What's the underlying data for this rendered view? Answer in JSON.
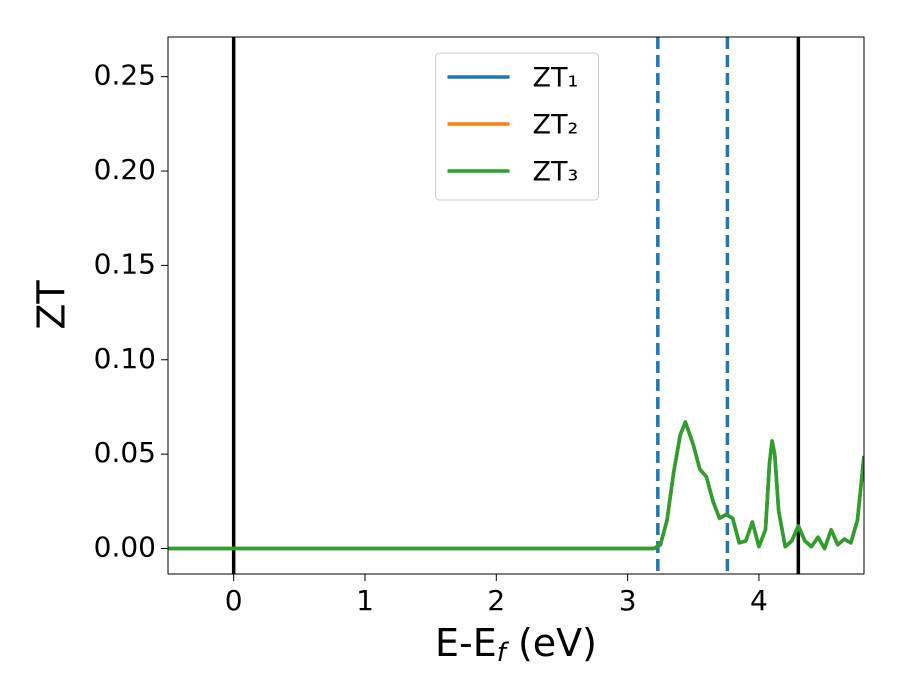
{
  "chart_data": {
    "type": "line",
    "xlabel": [
      "E-E",
      "f",
      " (eV)"
    ],
    "ylabel": "ZT",
    "xlim": [
      -0.5,
      4.8
    ],
    "ylim": [
      -0.0135,
      0.271
    ],
    "xticks": [
      0,
      1,
      2,
      3,
      4
    ],
    "yticks": [
      {
        "value": 0,
        "label": "0.00"
      },
      {
        "value": 0.05,
        "label": "0.05"
      },
      {
        "value": 0.1,
        "label": "0.10"
      },
      {
        "value": 0.15,
        "label": "0.15"
      },
      {
        "value": 0.2,
        "label": "0.20"
      },
      {
        "value": 0.25,
        "label": "0.25"
      }
    ],
    "vlines": [
      {
        "x": 0,
        "color": "#000000",
        "dashed": false
      },
      {
        "x": 3.23,
        "color": "#1f77b4",
        "dashed": true
      },
      {
        "x": 3.76,
        "color": "#1f77b4",
        "dashed": true
      },
      {
        "x": 4.3,
        "color": "#000000",
        "dashed": false
      }
    ],
    "legend": "upper center",
    "x": [
      -0.5,
      0,
      1,
      2,
      3,
      3.2,
      3.25,
      3.3,
      3.35,
      3.4,
      3.44,
      3.5,
      3.55,
      3.6,
      3.65,
      3.7,
      3.75,
      3.8,
      3.85,
      3.9,
      3.95,
      4.0,
      4.05,
      4.08,
      4.1,
      4.12,
      4.15,
      4.2,
      4.25,
      4.3,
      4.35,
      4.4,
      4.45,
      4.5,
      4.55,
      4.6,
      4.65,
      4.7,
      4.75,
      4.8
    ],
    "series": [
      {
        "name": "ZT₁",
        "color": "#1f77b4",
        "values": [
          0,
          0,
          0,
          0,
          0,
          0,
          0.002,
          0.015,
          0.04,
          0.06,
          0.067,
          0.055,
          0.042,
          0.038,
          0.025,
          0.016,
          0.018,
          0.016,
          0.003,
          0.004,
          0.014,
          0.001,
          0.01,
          0.045,
          0.057,
          0.05,
          0.02,
          0.001,
          0.004,
          0.012,
          0.004,
          0.001,
          0.006,
          0,
          0.01,
          0.002,
          0.005,
          0.003,
          0.015,
          0.049
        ]
      },
      {
        "name": "ZT₂",
        "color": "#ff7f0e",
        "values": [
          0,
          0,
          0,
          0,
          0,
          0,
          0.002,
          0.015,
          0.04,
          0.06,
          0.067,
          0.055,
          0.042,
          0.038,
          0.025,
          0.016,
          0.018,
          0.016,
          0.003,
          0.004,
          0.014,
          0.001,
          0.01,
          0.045,
          0.057,
          0.05,
          0.02,
          0.001,
          0.004,
          0.012,
          0.004,
          0.001,
          0.006,
          0,
          0.01,
          0.002,
          0.005,
          0.003,
          0.015,
          0.049
        ]
      },
      {
        "name": "ZT₃",
        "color": "#2ca02c",
        "values": [
          0,
          0,
          0,
          0,
          0,
          0,
          0.002,
          0.015,
          0.04,
          0.06,
          0.067,
          0.055,
          0.042,
          0.038,
          0.025,
          0.016,
          0.018,
          0.016,
          0.003,
          0.004,
          0.014,
          0.001,
          0.01,
          0.045,
          0.057,
          0.05,
          0.02,
          0.001,
          0.004,
          0.012,
          0.004,
          0.001,
          0.006,
          0,
          0.01,
          0.002,
          0.005,
          0.003,
          0.015,
          0.049
        ]
      }
    ]
  }
}
